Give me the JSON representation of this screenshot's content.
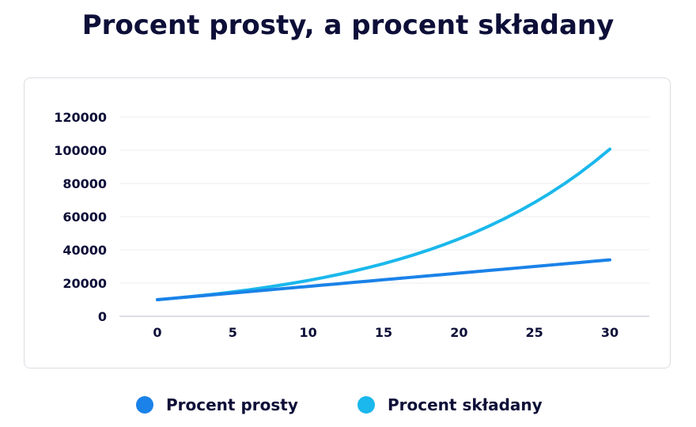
{
  "chart_data": {
    "type": "line",
    "title": "Procent prosty, a procent składany",
    "xlabel": "",
    "ylabel": "",
    "x": [
      0,
      1,
      2,
      3,
      4,
      5,
      6,
      7,
      8,
      9,
      10,
      11,
      12,
      13,
      14,
      15,
      16,
      17,
      18,
      19,
      20,
      21,
      22,
      23,
      24,
      25,
      26,
      27,
      28,
      29,
      30
    ],
    "xlim": [
      0,
      30
    ],
    "ylim": [
      0,
      120000
    ],
    "x_ticks": [
      "0",
      "5",
      "10",
      "15",
      "20",
      "25",
      "30"
    ],
    "y_ticks": [
      "0",
      "20000",
      "40000",
      "60000",
      "80000",
      "100000",
      "120000"
    ],
    "grid": "horizontal",
    "legend_position": "bottom",
    "series": [
      {
        "name": "Procent prosty",
        "color": "#1a82e8",
        "values": [
          10000,
          10800,
          11600,
          12400,
          13200,
          14000,
          14800,
          15600,
          16400,
          17200,
          18000,
          18800,
          19600,
          20400,
          21200,
          22000,
          22800,
          23600,
          24400,
          25200,
          26000,
          26800,
          27600,
          28400,
          29200,
          30000,
          30800,
          31600,
          32400,
          33200,
          34000
        ]
      },
      {
        "name": "Procent składany",
        "color": "#1ab8ec",
        "values": [
          10000,
          10800,
          11664,
          12597,
          13605,
          14693,
          15869,
          17138,
          18509,
          19990,
          21589,
          23316,
          25182,
          27196,
          29372,
          31722,
          34259,
          37000,
          39960,
          43157,
          46610,
          50338,
          54365,
          58715,
          63412,
          68485,
          73964,
          79881,
          86271,
          93173,
          100627
        ]
      }
    ]
  },
  "legend": {
    "items": [
      {
        "label": "Procent prosty",
        "color": "#1a82e8"
      },
      {
        "label": "Procent składany",
        "color": "#1ab8ec"
      }
    ]
  }
}
